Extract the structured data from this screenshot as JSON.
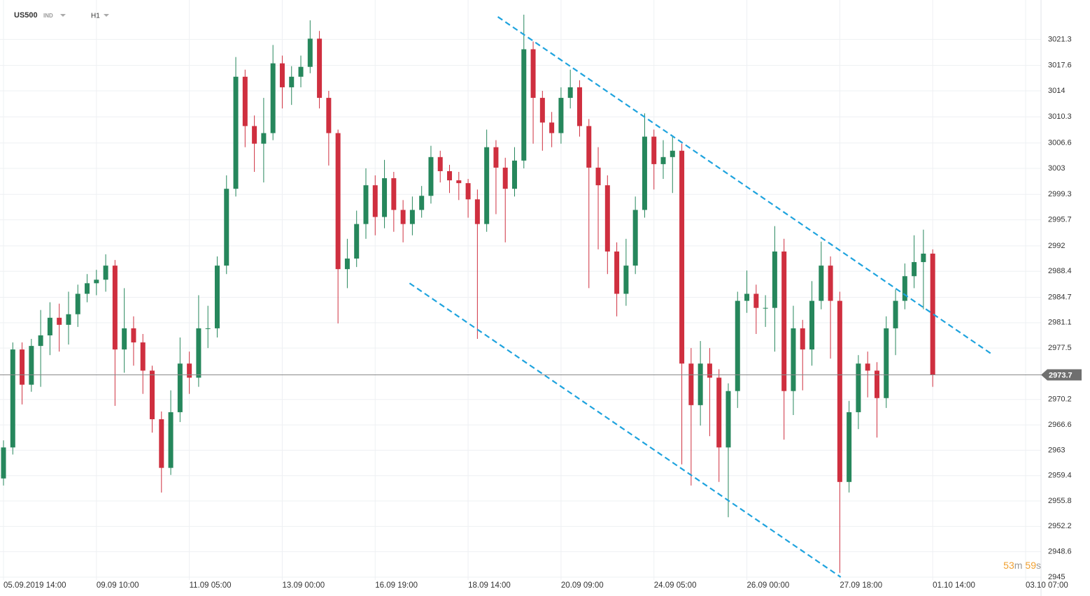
{
  "chart_data": {
    "type": "candlestick",
    "symbol": "US500",
    "market": "IND",
    "timeframe": "H1",
    "categories": [
      "05.09.2019 14:00",
      null,
      null,
      null,
      null,
      null,
      null,
      null,
      null,
      null,
      "09.09 10:00",
      null,
      null,
      null,
      null,
      null,
      null,
      null,
      null,
      null,
      "11.09 05:00",
      null,
      null,
      null,
      null,
      null,
      null,
      null,
      null,
      null,
      "13.09 00:00",
      null,
      null,
      null,
      null,
      null,
      null,
      null,
      null,
      null,
      "16.09 19:00",
      null,
      null,
      null,
      null,
      null,
      null,
      null,
      null,
      null,
      "18.09 14:00",
      null,
      null,
      null,
      null,
      null,
      null,
      null,
      null,
      null,
      "20.09 09:00",
      null,
      null,
      null,
      null,
      null,
      null,
      null,
      null,
      null,
      "24.09 05:00",
      null,
      null,
      null,
      null,
      null,
      null,
      null,
      null,
      null,
      "26.09 00:00",
      null,
      null,
      null,
      null,
      null,
      null,
      null,
      null,
      null,
      "27.09 18:00",
      null,
      null,
      null,
      null,
      null,
      null,
      null,
      null,
      null,
      "01.10 14:00",
      null,
      null,
      null,
      null,
      null,
      null,
      null,
      null,
      null,
      "03.10 07:00"
    ],
    "open": [
      2959.0,
      2963.4,
      2977.3,
      2972.3,
      2977.8,
      2979.3,
      2981.8,
      2980.8,
      2982.3,
      2985.2,
      2986.7,
      2987.2,
      2989.2,
      2977.3,
      2980.3,
      2978.3,
      2974.3,
      2967.4,
      2960.5,
      2968.4,
      2975.3,
      2973.3,
      2980.3,
      2980.3,
      2989.2,
      3000.1,
      3016.0,
      3009.0,
      3006.5,
      3008.0,
      3017.9,
      3014.5,
      3016.0,
      3017.4,
      3021.4,
      3013.0,
      3008.0,
      2988.7,
      2990.2,
      2995.1,
      3000.6,
      2996.1,
      3001.6,
      2997.1,
      2995.1,
      2997.1,
      2999.1,
      3004.6,
      3002.6,
      3001.3,
      3000.9,
      2998.6,
      2995.1,
      3006.0,
      3003.1,
      3000.1,
      3004.1,
      3019.9,
      3013.0,
      3009.5,
      3008.0,
      3013.0,
      3014.5,
      3009.0,
      3003.1,
      3000.6,
      2991.2,
      2985.2,
      2989.2,
      2997.1,
      3007.5,
      3003.6,
      3004.6,
      3005.5,
      2975.3,
      2969.4,
      2975.3,
      2973.3,
      2963.4,
      2971.4,
      2984.2,
      2985.2,
      2983.2,
      2983.2,
      2991.2,
      2971.4,
      2980.3,
      2977.3,
      2984.2,
      2989.2,
      2984.2,
      2958.5,
      2968.4,
      2975.3,
      2974.3,
      2970.4,
      2980.3,
      2984.2,
      2987.7,
      2989.7,
      2990.9,
      null,
      null,
      null,
      null,
      null,
      null,
      null,
      null,
      null,
      null
    ],
    "high": [
      2964.4,
      2978.3,
      2978.3,
      2978.8,
      2982.9,
      2984.0,
      2983.8,
      2985.5,
      2986.5,
      2988.0,
      2988.6,
      2990.8,
      2990.0,
      2986.0,
      2982.0,
      2979.5,
      2975.0,
      2968.5,
      2971.5,
      2979.0,
      2977.0,
      2985.0,
      2983.5,
      2990.5,
      3002.0,
      3018.8,
      3017.0,
      3010.5,
      3013.0,
      3020.5,
      3019.0,
      3017.5,
      3019.0,
      3024.0,
      3022.5,
      3014.0,
      3008.5,
      2993.0,
      2997.0,
      3003.0,
      3002.0,
      3004.2,
      3002.5,
      2998.5,
      2999.0,
      3000.5,
      3006.2,
      3005.5,
      3003.5,
      3002.5,
      3001.5,
      3000.0,
      3008.5,
      3007.0,
      3004.5,
      3006.0,
      3024.8,
      3021.0,
      3014.0,
      3011.0,
      3014.5,
      3017.0,
      3015.5,
      3010.0,
      3006.0,
      3002.0,
      2992.5,
      2993.0,
      2999.0,
      3010.8,
      3008.5,
      3007.0,
      3007.5,
      3006.5,
      2977.5,
      2978.5,
      2977.5,
      2974.5,
      2972.5,
      2985.5,
      2988.5,
      2986.5,
      2985.0,
      2994.8,
      2993.0,
      2983.5,
      2981.5,
      2987.0,
      2992.6,
      2990.5,
      2985.5,
      2970.0,
      2976.5,
      2977.0,
      2975.5,
      2982.0,
      2985.8,
      2989.5,
      2993.5,
      2994.3,
      2991.5,
      null,
      null,
      null,
      null,
      null,
      null,
      null,
      null,
      null,
      null
    ],
    "low": [
      2958.0,
      2962.4,
      2969.5,
      2971.3,
      2972.0,
      2976.5,
      2977.0,
      2978.0,
      2980.5,
      2984.0,
      2985.0,
      2985.5,
      2969.3,
      2974.0,
      2975.0,
      2971.0,
      2965.5,
      2957.0,
      2959.5,
      2967.0,
      2971.0,
      2972.0,
      2977.5,
      2979.0,
      2988.0,
      2999.0,
      3006.0,
      3002.5,
      3001.0,
      3007.0,
      3011.5,
      3012.0,
      3014.5,
      3016.5,
      3011.5,
      3003.4,
      2981.0,
      2986.0,
      2989.0,
      2993.0,
      2993.5,
      2994.5,
      2994.0,
      2992.5,
      2993.5,
      2996.0,
      2998.0,
      3001.0,
      2999.5,
      2998.5,
      2996.0,
      2978.8,
      2994.0,
      2996.5,
      2992.5,
      2999.0,
      3003.0,
      3006.5,
      3005.5,
      3006.0,
      3006.5,
      3011.5,
      3007.5,
      2986.0,
      2991.5,
      2988.0,
      2982.0,
      2983.5,
      2988.0,
      2996.0,
      3000.0,
      3001.5,
      2999.5,
      2961.0,
      2958.0,
      2966.5,
      2965.0,
      2958.5,
      2953.5,
      2969.0,
      2982.5,
      2979.5,
      2980.5,
      2977.0,
      2964.5,
      2968.0,
      2971.5,
      2975.0,
      2983.0,
      2976.0,
      2945.6,
      2957.0,
      2966.0,
      2970.5,
      2964.8,
      2969.0,
      2976.5,
      2983.0,
      2986.0,
      2983.0,
      2972.0,
      null,
      null,
      null,
      null,
      null,
      null,
      null,
      null,
      null,
      null
    ],
    "close": [
      2963.4,
      2977.3,
      2972.3,
      2977.8,
      2979.3,
      2981.8,
      2980.8,
      2982.3,
      2985.2,
      2986.7,
      2987.2,
      2989.2,
      2977.3,
      2980.3,
      2978.3,
      2974.3,
      2967.4,
      2960.5,
      2968.4,
      2975.3,
      2973.3,
      2980.3,
      2980.3,
      2989.2,
      3000.1,
      3016.0,
      3009.0,
      3006.5,
      3008.0,
      3017.9,
      3014.5,
      3016.0,
      3017.4,
      3021.4,
      3013.0,
      3008.0,
      2988.7,
      2990.2,
      2995.1,
      3000.6,
      2996.1,
      3001.6,
      2997.1,
      2995.1,
      2997.1,
      2999.1,
      3004.6,
      3002.6,
      3001.3,
      3000.9,
      2998.6,
      2995.1,
      3006.0,
      3003.1,
      3000.1,
      3004.1,
      3019.9,
      3013.0,
      3009.5,
      3008.0,
      3013.0,
      3014.5,
      3009.0,
      3003.1,
      3000.6,
      2991.2,
      2985.2,
      2989.2,
      2997.1,
      3007.5,
      3003.6,
      3004.6,
      3005.5,
      2975.3,
      2969.4,
      2975.3,
      2973.3,
      2963.4,
      2971.4,
      2984.2,
      2985.2,
      2983.2,
      2983.2,
      2991.2,
      2971.4,
      2980.3,
      2977.3,
      2984.2,
      2989.2,
      2984.2,
      2958.5,
      2968.4,
      2975.3,
      2974.3,
      2970.4,
      2980.3,
      2984.2,
      2987.7,
      2989.7,
      2990.9,
      2973.7,
      null,
      null,
      null,
      null,
      null,
      null,
      null,
      null,
      null,
      null
    ],
    "up_color": "#26875c",
    "down_color": "#cf2f3f",
    "ylim": [
      2944.6,
      3025.4
    ],
    "yticks": [
      2945.0,
      2948.6,
      2952.2,
      2955.8,
      2959.4,
      2963.0,
      2966.6,
      2970.2,
      2977.5,
      2981.1,
      2984.7,
      2988.4,
      2992.0,
      2995.7,
      2999.3,
      3003.0,
      3006.6,
      3010.3,
      3014.0,
      3017.6,
      3021.3
    ],
    "grid": true,
    "last_price": 2973.7,
    "trendlines": [
      {
        "color": "#1ea3de",
        "x": [
          53.2,
          106.4
        ],
        "y": [
          3024.5,
          2976.6
        ]
      },
      {
        "color": "#1ea3de",
        "x": [
          43.7,
          90.1
        ],
        "y": [
          2986.7,
          2945.0
        ]
      }
    ],
    "countdown": {
      "minutes": 53,
      "minutes_unit": "m",
      "seconds": 59,
      "seconds_unit": "s"
    }
  }
}
